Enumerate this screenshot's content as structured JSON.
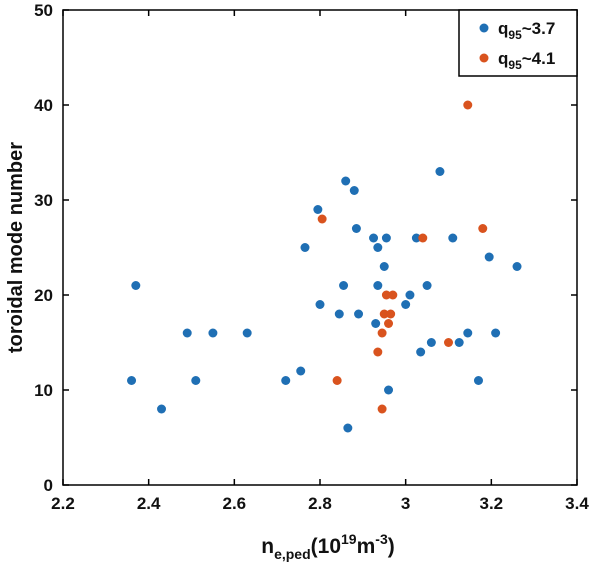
{
  "chart_data": {
    "type": "scatter",
    "title": "",
    "xlabel": {
      "base": "n",
      "sub": "e,ped",
      "paren_open": "(10",
      "sup1": "19",
      "unit": "m",
      "sup2": "-3",
      "paren_close": ")"
    },
    "ylabel": "toroidal mode number",
    "xlim": [
      2.2,
      3.4
    ],
    "ylim": [
      0,
      50
    ],
    "xticks": [
      "2.2",
      "2.4",
      "2.6",
      "2.8",
      "3",
      "3.2",
      "3.4"
    ],
    "yticks": [
      "0",
      "10",
      "20",
      "30",
      "40",
      "50"
    ],
    "grid": false,
    "legend_position": "top-right",
    "series": [
      {
        "name": {
          "base": "q",
          "sub": "95",
          "rest": "~3.7"
        },
        "color": "#1f6fb4",
        "points": [
          [
            2.36,
            11
          ],
          [
            2.37,
            21
          ],
          [
            2.43,
            8
          ],
          [
            2.49,
            16
          ],
          [
            2.51,
            11
          ],
          [
            2.55,
            16
          ],
          [
            2.63,
            16
          ],
          [
            2.72,
            11
          ],
          [
            2.755,
            12
          ],
          [
            2.765,
            25
          ],
          [
            2.795,
            29
          ],
          [
            2.8,
            19
          ],
          [
            2.845,
            18
          ],
          [
            2.855,
            21
          ],
          [
            2.86,
            32
          ],
          [
            2.865,
            6
          ],
          [
            2.88,
            31
          ],
          [
            2.885,
            27
          ],
          [
            2.89,
            18
          ],
          [
            2.925,
            26
          ],
          [
            2.93,
            17
          ],
          [
            2.935,
            21
          ],
          [
            2.935,
            25
          ],
          [
            2.95,
            23
          ],
          [
            2.955,
            26
          ],
          [
            2.96,
            10
          ],
          [
            3.0,
            19
          ],
          [
            3.01,
            20
          ],
          [
            3.025,
            26
          ],
          [
            3.035,
            14
          ],
          [
            3.05,
            21
          ],
          [
            3.06,
            15
          ],
          [
            3.08,
            33
          ],
          [
            3.11,
            26
          ],
          [
            3.125,
            15
          ],
          [
            3.145,
            16
          ],
          [
            3.17,
            11
          ],
          [
            3.195,
            24
          ],
          [
            3.21,
            16
          ],
          [
            3.26,
            23
          ]
        ]
      },
      {
        "name": {
          "base": "q",
          "sub": "95",
          "rest": "~4.1"
        },
        "color": "#d9531e",
        "points": [
          [
            2.805,
            28
          ],
          [
            2.84,
            11
          ],
          [
            2.935,
            14
          ],
          [
            2.945,
            8
          ],
          [
            2.945,
            16
          ],
          [
            2.95,
            18
          ],
          [
            2.955,
            20
          ],
          [
            2.96,
            17
          ],
          [
            2.965,
            18
          ],
          [
            2.97,
            20
          ],
          [
            3.04,
            26
          ],
          [
            3.1,
            15
          ],
          [
            3.145,
            40
          ],
          [
            3.18,
            27
          ]
        ]
      }
    ]
  }
}
